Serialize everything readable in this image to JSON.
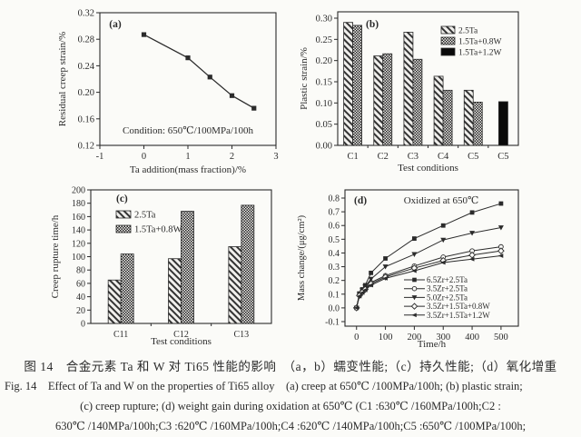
{
  "style": {
    "ink": "#2b2b2b",
    "paper": "#fbfbf8",
    "hatch_bg": "#f0efec",
    "hatch_fg": "#333333"
  },
  "caption": {
    "cn": "图 14　合金元素 Ta 和 W 对 Ti65 性能的影响　（a，b）蠕变性能;（c）持久性能;（d）氧化增重",
    "en1": "Fig. 14　Effect of Ta and W on the properties of Ti65 alloy　(a) creep at 650℃ /100MPa/100h; (b) plastic strain;",
    "en2": "(c) creep rupture; (d) weight gain during oxidation at 650℃ (C1 :630℃ /160MPa/100h;C2 :",
    "en3": "630℃ /140MPa/100h;C3 :620℃ /160MPa/100h;C4 :620℃ /140MPa/100h;C5 :650℃ /100MPa/100h;"
  },
  "chart_data": [
    {
      "id": "a",
      "type": "line",
      "panel_label": "(a)",
      "xlabel": "Ta addition(mass fraction)/%",
      "ylabel": "Residual creep strain/%",
      "annotation": "Condition: 650℃/100MPa/100h",
      "xlim": [
        -1,
        3
      ],
      "xticks": [
        "-1",
        "0",
        "1",
        "2",
        "3"
      ],
      "ylim": [
        0.12,
        0.32
      ],
      "yticks": [
        "0.12",
        "0.16",
        "0.20",
        "0.24",
        "0.28",
        "0.32"
      ],
      "marker": "square",
      "grid": false,
      "x": [
        0,
        1,
        1.5,
        2,
        2.5
      ],
      "y": [
        0.287,
        0.252,
        0.223,
        0.195,
        0.176
      ]
    },
    {
      "id": "b",
      "type": "bar",
      "panel_label": "(b)",
      "xlabel": "Test conditions",
      "ylabel": "Plastic strain/%",
      "ylim": [
        0,
        0.3
      ],
      "yticks": [
        "0.00",
        "0.05",
        "0.10",
        "0.15",
        "0.20",
        "0.25",
        "0.30"
      ],
      "categories": [
        "C1",
        "C2",
        "C3",
        "C4",
        "C5",
        "C5"
      ],
      "legend_position": "top-right",
      "grid": false,
      "series": [
        {
          "name": "2.5Ta",
          "pattern": "diag",
          "values": [
            0.29,
            0.211,
            0.267,
            0.163,
            0.13,
            null
          ]
        },
        {
          "name": "1.5Ta+0.8W",
          "pattern": "check",
          "values": [
            0.283,
            0.216,
            0.203,
            0.13,
            0.102,
            null
          ]
        },
        {
          "name": "1.5Ta+1.2W",
          "pattern": "solid",
          "values": [
            null,
            null,
            null,
            null,
            null,
            0.103
          ]
        }
      ]
    },
    {
      "id": "c",
      "type": "bar",
      "panel_label": "(c)",
      "xlabel": "Test conditions",
      "ylabel": "Creep rupture time/h",
      "ylim": [
        0,
        200
      ],
      "yticks": [
        "0",
        "20",
        "40",
        "60",
        "80",
        "100",
        "120",
        "140",
        "160",
        "180",
        "200"
      ],
      "categories": [
        "C11",
        "C12",
        "C13"
      ],
      "legend_position": "top-left",
      "grid": false,
      "series": [
        {
          "name": "2.5Ta",
          "pattern": "diag",
          "values": [
            65,
            97,
            115
          ]
        },
        {
          "name": "1.5Ta+0.8W",
          "pattern": "check",
          "values": [
            104,
            168,
            177
          ]
        }
      ]
    },
    {
      "id": "d",
      "type": "line",
      "panel_label": "(d)",
      "xlabel": "Time/h",
      "ylabel": "Mass change/(μg/cm²)",
      "annotation": "Oxidized at 650℃",
      "xlim": [
        -40,
        560
      ],
      "xticks": [
        "0",
        "100",
        "200",
        "300",
        "400",
        "500"
      ],
      "ylim": [
        -0.1,
        0.8
      ],
      "yticks": [
        "-0.1",
        "0.0",
        "0.1",
        "0.2",
        "0.3",
        "0.4",
        "0.5",
        "0.6",
        "0.7",
        "0.8"
      ],
      "legend_position": "bottom-right",
      "grid": false,
      "x": [
        0,
        10,
        20,
        30,
        50,
        100,
        200,
        300,
        400,
        500
      ],
      "series": [
        {
          "name": "6.5Zr+2.5Ta",
          "marker": "square",
          "values": [
            0,
            0.105,
            0.135,
            0.165,
            0.255,
            0.36,
            0.505,
            0.6,
            0.695,
            0.76
          ]
        },
        {
          "name": "3.5Zr+2.5Ta",
          "marker": "circle-open",
          "values": [
            0,
            0.095,
            0.12,
            0.14,
            0.185,
            0.235,
            0.305,
            0.37,
            0.415,
            0.445
          ]
        },
        {
          "name": "5.0Zr+2.5Ta",
          "marker": "triangle-down",
          "values": [
            0,
            0.1,
            0.13,
            0.155,
            0.21,
            0.3,
            0.39,
            0.495,
            0.545,
            0.585
          ]
        },
        {
          "name": "3.5Zr+1.5Ta+0.8W",
          "marker": "diamond-open",
          "values": [
            0,
            0.09,
            0.115,
            0.135,
            0.175,
            0.225,
            0.29,
            0.345,
            0.385,
            0.415
          ]
        },
        {
          "name": "3.5Zr+1.5Ta+1.2W",
          "marker": "triangle-left",
          "values": [
            0,
            0.085,
            0.11,
            0.13,
            0.165,
            0.215,
            0.27,
            0.33,
            0.355,
            0.38
          ]
        }
      ]
    }
  ]
}
